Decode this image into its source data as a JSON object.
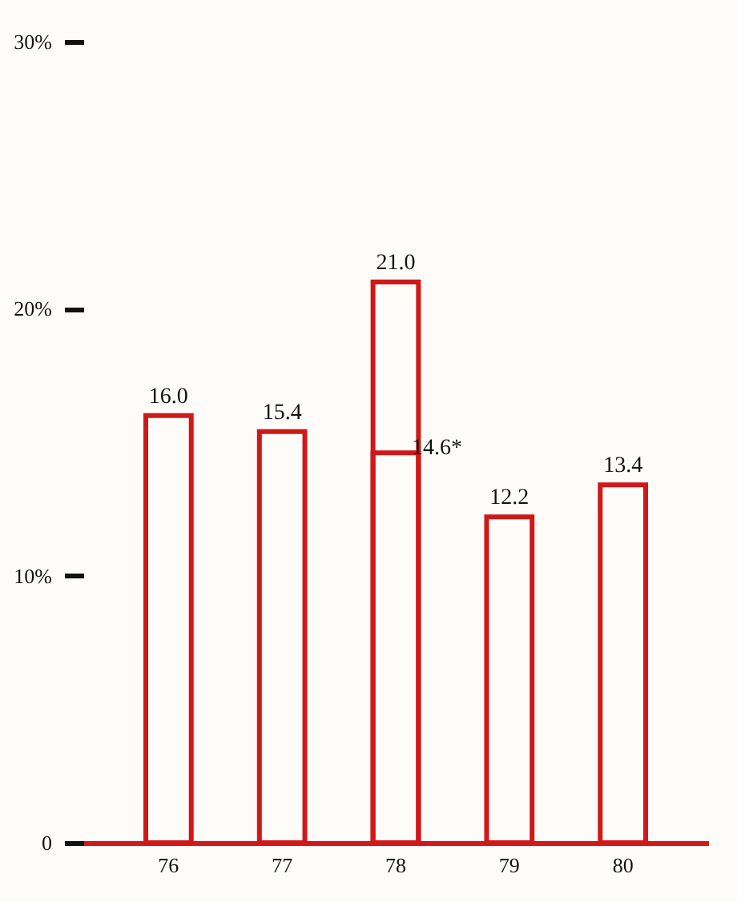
{
  "chart_data": {
    "type": "bar",
    "categories": [
      "76",
      "77",
      "78",
      "79",
      "80"
    ],
    "series": [
      {
        "color": "#d01818",
        "values": [
          16.0,
          15.4,
          21.0,
          12.2,
          13.4
        ],
        "value_labels": [
          "16.0",
          "15.4",
          "21.0",
          "12.2",
          "13.4"
        ]
      },
      {
        "color": "#d01818",
        "values": [
          null,
          null,
          14.6,
          null,
          null
        ],
        "value_labels": [
          null,
          null,
          "14.6*",
          null,
          null
        ]
      }
    ],
    "ylim": [
      0,
      30
    ],
    "yticks": [
      0,
      {
        "value": 10,
        "label": "10%"
      },
      {
        "value": 20,
        "label": "20%"
      },
      {
        "value": 30,
        "label": "30%"
      }
    ]
  }
}
